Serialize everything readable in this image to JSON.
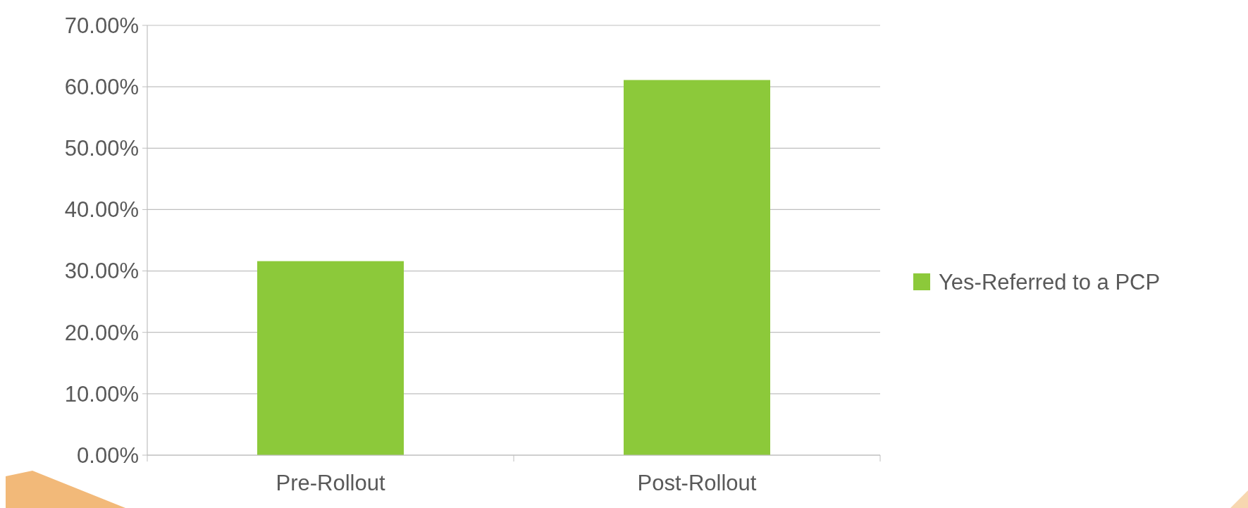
{
  "chart_data": {
    "type": "bar",
    "categories": [
      "Pre-Rollout",
      "Post-Rollout"
    ],
    "series": [
      {
        "name": "Yes-Referred to a PCP",
        "color": "#8cc93a",
        "values": [
          31.6,
          61.1
        ]
      }
    ],
    "ylim": [
      0,
      70
    ],
    "yticks": [
      {
        "value": 0,
        "label": "0.00%"
      },
      {
        "value": 10,
        "label": "10.00%"
      },
      {
        "value": 20,
        "label": "20.00%"
      },
      {
        "value": 30,
        "label": "30.00%"
      },
      {
        "value": 40,
        "label": "40.00%"
      },
      {
        "value": 50,
        "label": "50.00%"
      },
      {
        "value": 60,
        "label": "60.00%"
      },
      {
        "value": 70,
        "label": "70.00%"
      }
    ],
    "grid": "y",
    "legend": "right"
  }
}
